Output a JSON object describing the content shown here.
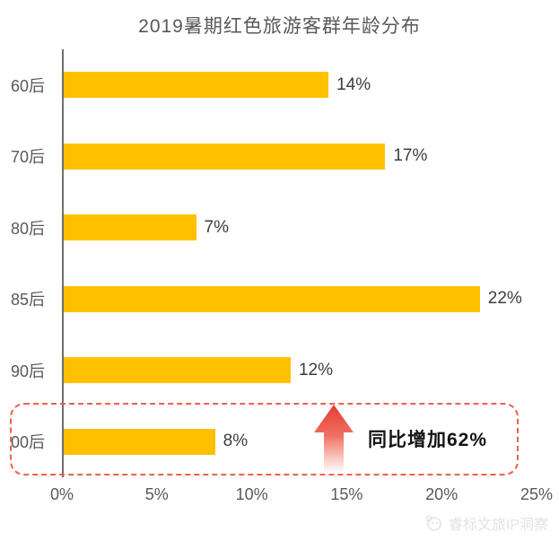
{
  "title": "2019暑期红色旅游客群年龄分布",
  "chart_data": {
    "type": "bar",
    "orientation": "horizontal",
    "title": "2019暑期红色旅游客群年龄分布",
    "categories": [
      "60后",
      "70后",
      "80后",
      "85后",
      "90后",
      "00后"
    ],
    "values": [
      14,
      17,
      7,
      22,
      12,
      8
    ],
    "value_labels": [
      "14%",
      "17%",
      "7%",
      "22%",
      "12%",
      "8%"
    ],
    "xlabel": "",
    "ylabel": "",
    "xlim": [
      0,
      25
    ],
    "x_ticks": [
      "0%",
      "5%",
      "10%",
      "15%",
      "20%",
      "25%"
    ],
    "grid": false,
    "legend": "none",
    "bar_color": "#FFC000"
  },
  "annotation": {
    "label": "同比增加62%",
    "highlighted_category": "00后",
    "arrow_direction": "up"
  },
  "watermark": {
    "text": "睿标文旅IP洞察"
  },
  "colors": {
    "bar": "#FFC000",
    "title_text": "#595959",
    "axis_text": "#595959",
    "value_text": "#3d3d3d",
    "axis_line": "#6e6e6e",
    "highlight_border": "#ED604F",
    "arrow_top": "#E63C30",
    "arrow_bottom": "#FFFFFF",
    "annotation_text": "#141414",
    "watermark_text": "#e2e2e2"
  }
}
